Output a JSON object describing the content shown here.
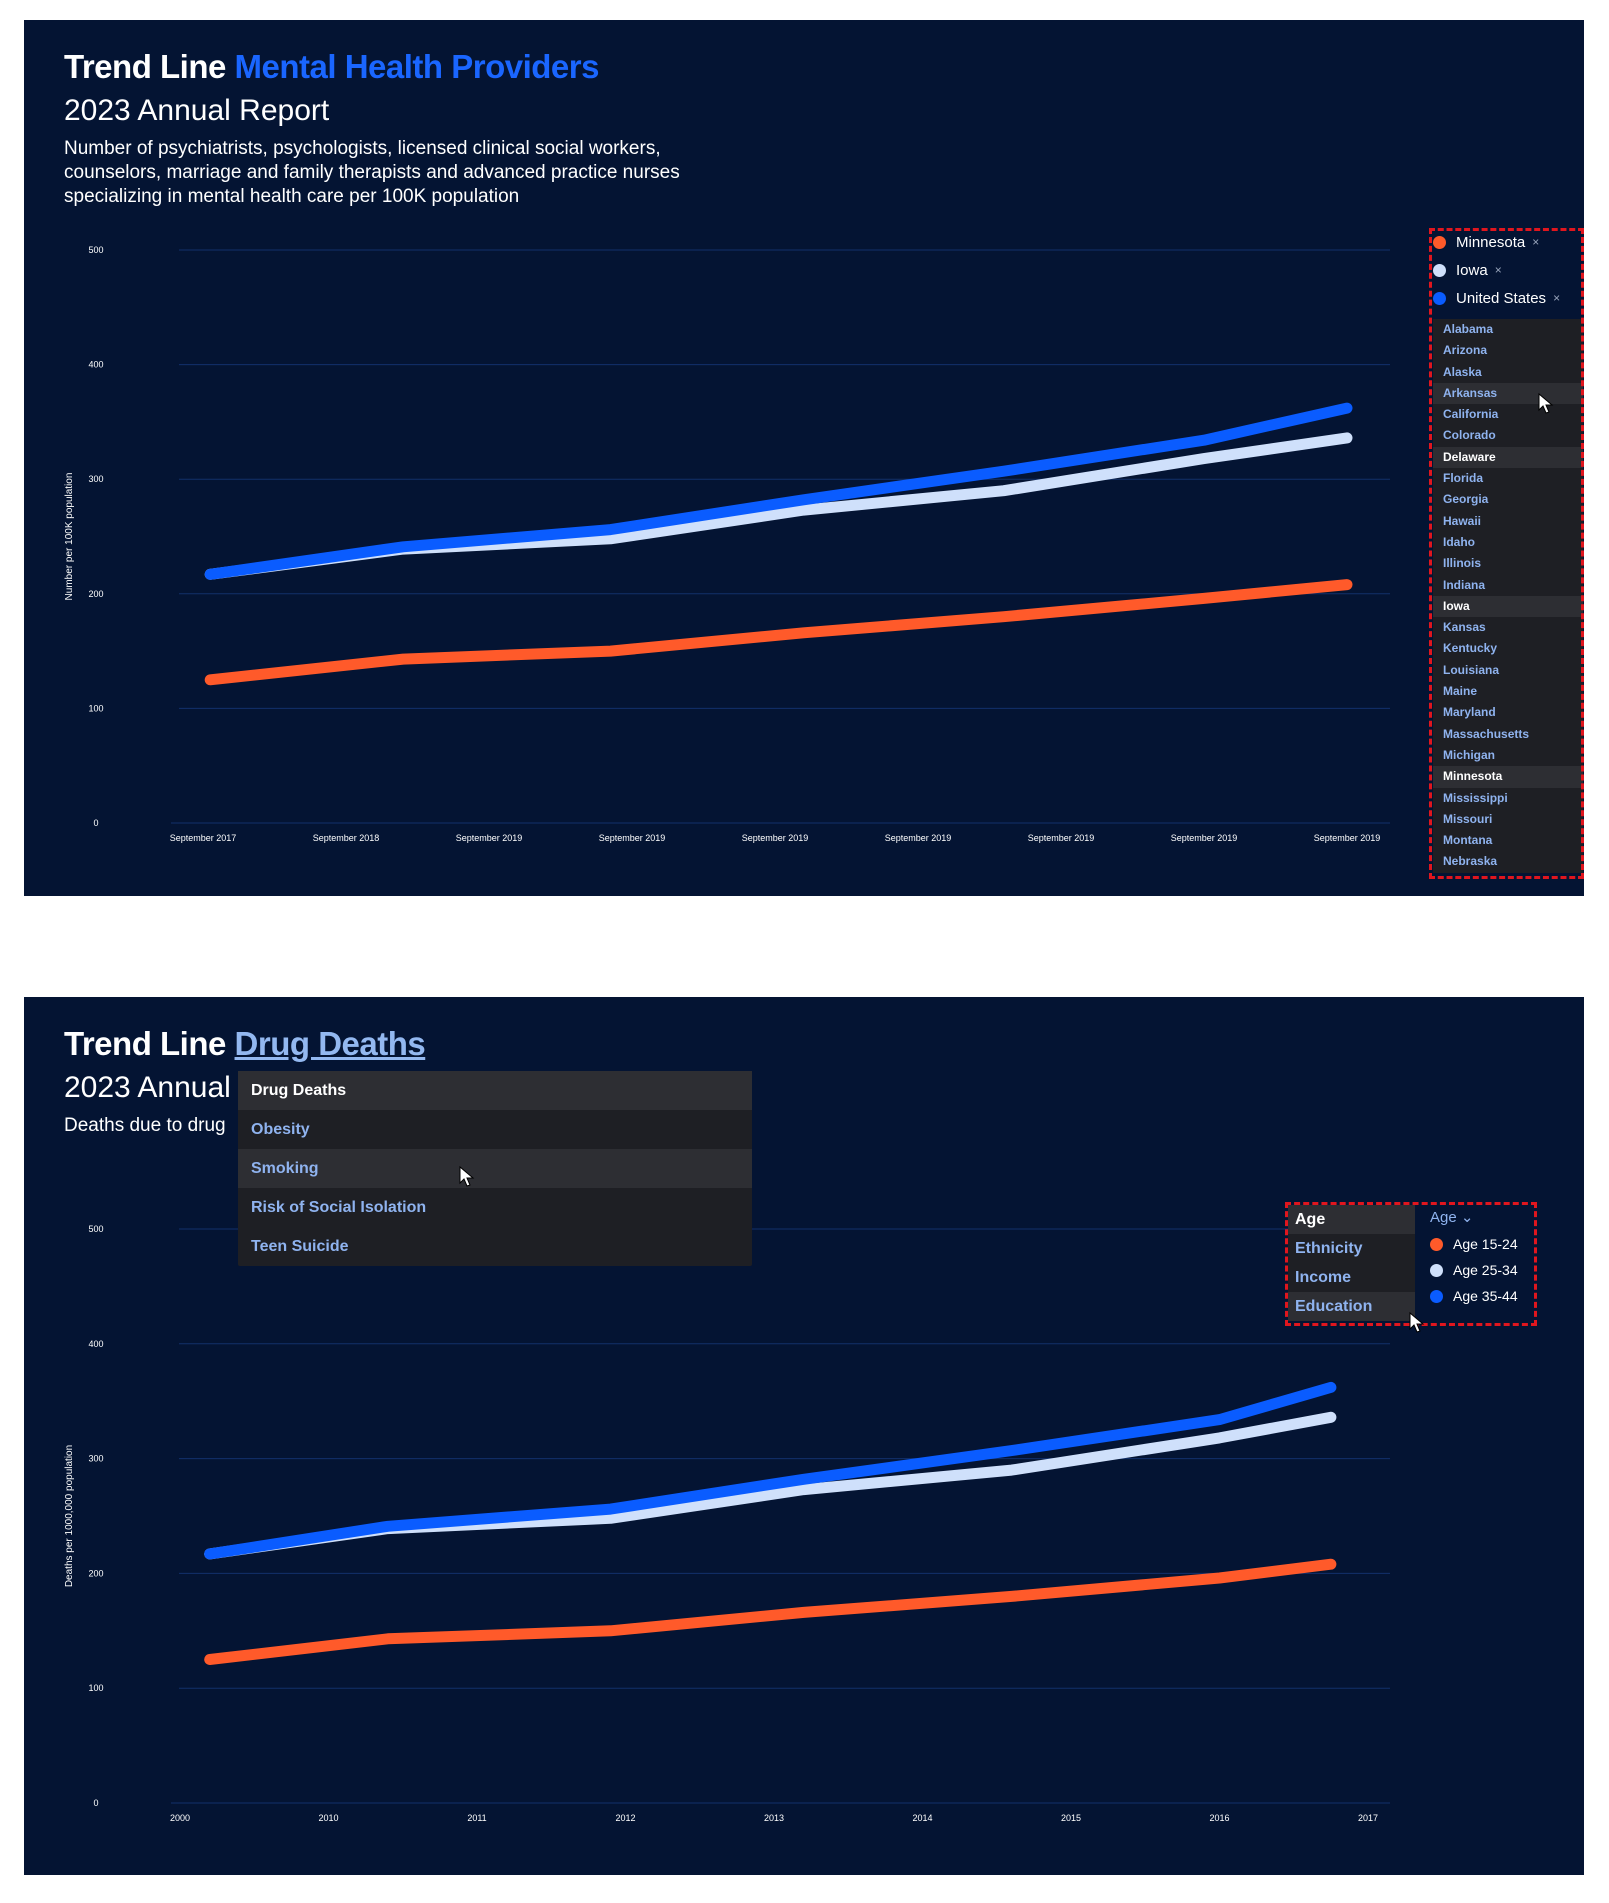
{
  "colors": {
    "background": "#041433",
    "minnesota": "#ff5a2a",
    "iowa": "#cfe0fb",
    "us": "#0a5cff",
    "grid": "#12306b",
    "accent": "#1a66ff"
  },
  "panel1": {
    "title_prefix": "Trend Line",
    "title_highlight": "Mental Health Providers",
    "subtitle": "2023 Annual Report",
    "description": "Number of psychiatrists, psychologists, licensed clinical social workers, counselors, marriage and family therapists and advanced practice nurses specializing in mental health care per 100K population",
    "selected": [
      {
        "label": "Minnesota",
        "remove": "×"
      },
      {
        "label": "Iowa",
        "remove": "×"
      },
      {
        "label": "United States",
        "remove": "×"
      }
    ],
    "states": [
      "Alabama",
      "Arizona",
      "Alaska",
      "Arkansas",
      "California",
      "Colorado",
      "Delaware",
      "Florida",
      "Georgia",
      "Hawaii",
      "Idaho",
      "Illinois",
      "Indiana",
      "Iowa",
      "Kansas",
      "Kentucky",
      "Louisiana",
      "Maine",
      "Maryland",
      "Massachusetts",
      "Michigan",
      "Minnesota",
      "Mississippi",
      "Missouri",
      "Montana",
      "Nebraska"
    ]
  },
  "panel2": {
    "title_prefix": "Trend Line",
    "title_highlight": "Drug Deaths",
    "subtitle": "2023 Annual",
    "description": "Deaths due to drug",
    "dropdown": [
      "Drug Deaths",
      "Obesity",
      "Smoking",
      "Risk of Social Isolation",
      "Teen Suicide"
    ],
    "categories": [
      "Age",
      "Ethnicity",
      "Income",
      "Education"
    ],
    "age_header": "Age",
    "age_chevron": "⌄",
    "age_groups": [
      "Age 15-24",
      "Age 25-34",
      "Age 35-44"
    ]
  },
  "chart_data": [
    {
      "type": "line",
      "ylabel": "Number per 100K population",
      "ylim": [
        0,
        500
      ],
      "yticks": [
        0,
        100,
        200,
        300,
        400,
        500
      ],
      "xtick_labels": [
        "September 2017",
        "September 2018",
        "September 2019",
        "September 2019",
        "September 2019",
        "September 2019",
        "September 2019",
        "September 2019",
        "September 2019"
      ],
      "series": [
        {
          "name": "Minnesota",
          "x": [
            0.05,
            1.4,
            2.85,
            4.2,
            5.6,
            7.0,
            8.0
          ],
          "values": [
            125,
            143,
            150,
            166,
            180,
            196,
            208
          ]
        },
        {
          "name": "Iowa",
          "x": [
            0.05,
            1.4,
            2.85,
            4.2,
            5.6,
            7.0,
            8.0
          ],
          "values": [
            217,
            239,
            248,
            273,
            290,
            318,
            336
          ]
        },
        {
          "name": "United States",
          "x": [
            0.05,
            1.4,
            2.85,
            4.2,
            5.6,
            7.0,
            8.0
          ],
          "values": [
            217,
            241,
            256,
            282,
            307,
            334,
            362
          ]
        }
      ]
    },
    {
      "type": "line",
      "ylabel": "Deaths per 1000,000 population",
      "ylim": [
        0,
        500
      ],
      "yticks": [
        0,
        100,
        200,
        300,
        400,
        500
      ],
      "xtick_labels": [
        "2000",
        "2010",
        "2011",
        "2012",
        "2013",
        "2014",
        "2015",
        "2016",
        "2017"
      ],
      "series": [
        {
          "name": "Age 15-24",
          "x": [
            0.2,
            1.4,
            2.9,
            4.2,
            5.6,
            7.0,
            7.75
          ],
          "values": [
            125,
            143,
            150,
            166,
            180,
            196,
            208
          ]
        },
        {
          "name": "Age 25-34",
          "x": [
            0.2,
            1.4,
            2.9,
            4.2,
            5.6,
            7.0,
            7.75
          ],
          "values": [
            217,
            239,
            248,
            273,
            290,
            318,
            336
          ]
        },
        {
          "name": "Age 35-44",
          "x": [
            0.2,
            1.4,
            2.9,
            4.2,
            5.6,
            7.0,
            7.75
          ],
          "values": [
            217,
            241,
            256,
            282,
            307,
            334,
            362
          ]
        }
      ]
    }
  ]
}
